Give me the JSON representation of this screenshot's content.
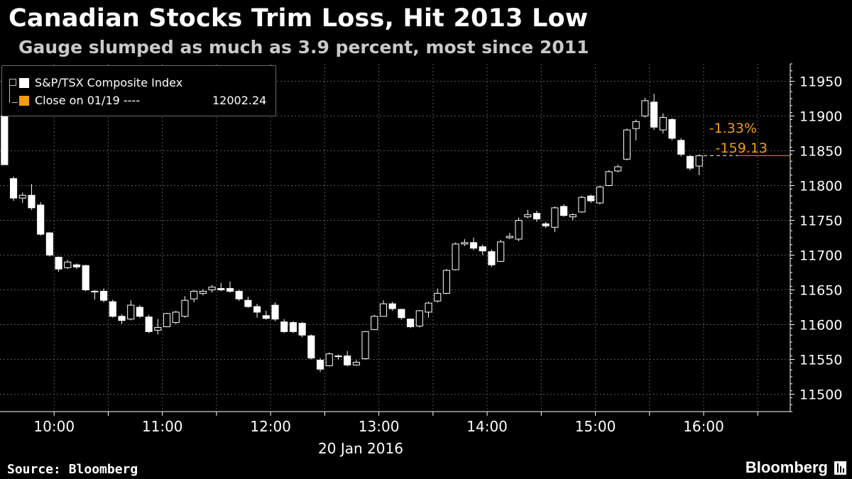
{
  "header": {
    "title": "Canadian Stocks Trim Loss, Hit 2013 Low",
    "subtitle": "Gauge slumped as much as 3.9 percent, most since 2011"
  },
  "footer": {
    "source": "Source: Bloomberg",
    "brand": "Bloomberg"
  },
  "legend": {
    "series_name": "S&P/TSX Composite Index",
    "close_label": "Close on 01/19 ----",
    "close_value": "12002.24"
  },
  "annotation": {
    "pct_change": "-1.33%",
    "abs_change": "-159.13"
  },
  "colors": {
    "background": "#000000",
    "candle_up": "#ffffff",
    "candle_down": "#ffffff",
    "accent": "#f39c12",
    "grid": "#555555"
  },
  "chart_data": {
    "type": "candlestick",
    "title": "Canadian Stocks Trim Loss, Hit 2013 Low",
    "subtitle": "Gauge slumped as much as 3.9 percent, most since 2011",
    "date_label": "20 Jan 2016",
    "xlabel": "",
    "ylabel": "",
    "ylim": [
      11475,
      11975
    ],
    "y_ticks": [
      11500,
      11550,
      11600,
      11650,
      11700,
      11750,
      11800,
      11850,
      11900,
      11950
    ],
    "x_ticks": [
      "10:00",
      "11:00",
      "12:00",
      "13:00",
      "14:00",
      "15:00",
      "16:00"
    ],
    "x_tick_hours": [
      10,
      11,
      12,
      13,
      14,
      15,
      16
    ],
    "x_range_hours": [
      9.5,
      16.8
    ],
    "candle_interval_minutes": 5,
    "last_value": 11843.11,
    "grid": true,
    "legend_position": "top-left",
    "candles": [
      {
        "t": "9:30",
        "o": 11900,
        "h": 11900,
        "l": 11830,
        "c": 11830
      },
      {
        "t": "9:35",
        "o": 11810,
        "h": 11813,
        "l": 11778,
        "c": 11782
      },
      {
        "t": "9:40",
        "o": 11782,
        "h": 11790,
        "l": 11775,
        "c": 11786
      },
      {
        "t": "9:45",
        "o": 11786,
        "h": 11802,
        "l": 11765,
        "c": 11768
      },
      {
        "t": "9:50",
        "o": 11772,
        "h": 11776,
        "l": 11728,
        "c": 11730
      },
      {
        "t": "9:55",
        "o": 11732,
        "h": 11733,
        "l": 11698,
        "c": 11700
      },
      {
        "t": "10:00",
        "o": 11697,
        "h": 11698,
        "l": 11676,
        "c": 11680
      },
      {
        "t": "10:05",
        "o": 11682,
        "h": 11693,
        "l": 11680,
        "c": 11690
      },
      {
        "t": "10:10",
        "o": 11686,
        "h": 11688,
        "l": 11680,
        "c": 11683
      },
      {
        "t": "10:15",
        "o": 11685,
        "h": 11686,
        "l": 11648,
        "c": 11650
      },
      {
        "t": "10:20",
        "o": 11648,
        "h": 11650,
        "l": 11636,
        "c": 11648
      },
      {
        "t": "10:25",
        "o": 11648,
        "h": 11652,
        "l": 11632,
        "c": 11635
      },
      {
        "t": "10:30",
        "o": 11633,
        "h": 11636,
        "l": 11610,
        "c": 11612
      },
      {
        "t": "10:35",
        "o": 11612,
        "h": 11615,
        "l": 11601,
        "c": 11606
      },
      {
        "t": "10:40",
        "o": 11608,
        "h": 11635,
        "l": 11606,
        "c": 11628
      },
      {
        "t": "10:45",
        "o": 11625,
        "h": 11628,
        "l": 11610,
        "c": 11612
      },
      {
        "t": "10:50",
        "o": 11611,
        "h": 11614,
        "l": 11588,
        "c": 11590
      },
      {
        "t": "10:55",
        "o": 11592,
        "h": 11608,
        "l": 11586,
        "c": 11596
      },
      {
        "t": "11:00",
        "o": 11597,
        "h": 11617,
        "l": 11597,
        "c": 11616
      },
      {
        "t": "11:05",
        "o": 11603,
        "h": 11620,
        "l": 11601,
        "c": 11618
      },
      {
        "t": "11:10",
        "o": 11612,
        "h": 11641,
        "l": 11610,
        "c": 11635
      },
      {
        "t": "11:15",
        "o": 11637,
        "h": 11650,
        "l": 11632,
        "c": 11648
      },
      {
        "t": "11:20",
        "o": 11645,
        "h": 11651,
        "l": 11642,
        "c": 11648
      },
      {
        "t": "11:25",
        "o": 11650,
        "h": 11657,
        "l": 11646,
        "c": 11654
      },
      {
        "t": "11:30",
        "o": 11652,
        "h": 11660,
        "l": 11648,
        "c": 11650
      },
      {
        "t": "11:35",
        "o": 11652,
        "h": 11662,
        "l": 11646,
        "c": 11648
      },
      {
        "t": "11:40",
        "o": 11648,
        "h": 11650,
        "l": 11634,
        "c": 11637
      },
      {
        "t": "11:45",
        "o": 11635,
        "h": 11640,
        "l": 11624,
        "c": 11626
      },
      {
        "t": "11:50",
        "o": 11626,
        "h": 11630,
        "l": 11610,
        "c": 11618
      },
      {
        "t": "11:55",
        "o": 11613,
        "h": 11620,
        "l": 11607,
        "c": 11609
      },
      {
        "t": "12:00",
        "o": 11628,
        "h": 11632,
        "l": 11605,
        "c": 11608
      },
      {
        "t": "12:05",
        "o": 11604,
        "h": 11608,
        "l": 11588,
        "c": 11590
      },
      {
        "t": "12:10",
        "o": 11603,
        "h": 11605,
        "l": 11588,
        "c": 11590
      },
      {
        "t": "12:15",
        "o": 11602,
        "h": 11604,
        "l": 11582,
        "c": 11585
      },
      {
        "t": "12:20",
        "o": 11584,
        "h": 11586,
        "l": 11550,
        "c": 11552
      },
      {
        "t": "12:25",
        "o": 11549,
        "h": 11552,
        "l": 11532,
        "c": 11536
      },
      {
        "t": "12:30",
        "o": 11541,
        "h": 11560,
        "l": 11540,
        "c": 11558
      },
      {
        "t": "12:35",
        "o": 11555,
        "h": 11557,
        "l": 11550,
        "c": 11555
      },
      {
        "t": "12:40",
        "o": 11555,
        "h": 11562,
        "l": 11540,
        "c": 11542
      },
      {
        "t": "12:45",
        "o": 11542,
        "h": 11549,
        "l": 11541,
        "c": 11546
      },
      {
        "t": "12:50",
        "o": 11551,
        "h": 11591,
        "l": 11550,
        "c": 11590
      },
      {
        "t": "12:55",
        "o": 11593,
        "h": 11614,
        "l": 11592,
        "c": 11612
      },
      {
        "t": "13:00",
        "o": 11612,
        "h": 11635,
        "l": 11612,
        "c": 11630
      },
      {
        "t": "13:05",
        "o": 11630,
        "h": 11633,
        "l": 11620,
        "c": 11623
      },
      {
        "t": "13:10",
        "o": 11622,
        "h": 11623,
        "l": 11607,
        "c": 11610
      },
      {
        "t": "13:15",
        "o": 11608,
        "h": 11609,
        "l": 11595,
        "c": 11597
      },
      {
        "t": "13:20",
        "o": 11598,
        "h": 11621,
        "l": 11596,
        "c": 11620
      },
      {
        "t": "13:25",
        "o": 11618,
        "h": 11633,
        "l": 11610,
        "c": 11631
      },
      {
        "t": "13:30",
        "o": 11634,
        "h": 11652,
        "l": 11632,
        "c": 11645
      },
      {
        "t": "13:35",
        "o": 11645,
        "h": 11680,
        "l": 11644,
        "c": 11678
      },
      {
        "t": "13:40",
        "o": 11679,
        "h": 11718,
        "l": 11678,
        "c": 11716
      },
      {
        "t": "13:45",
        "o": 11716,
        "h": 11723,
        "l": 11713,
        "c": 11718
      },
      {
        "t": "13:50",
        "o": 11718,
        "h": 11725,
        "l": 11707,
        "c": 11710
      },
      {
        "t": "13:55",
        "o": 11712,
        "h": 11715,
        "l": 11700,
        "c": 11706
      },
      {
        "t": "14:00",
        "o": 11705,
        "h": 11708,
        "l": 11683,
        "c": 11686
      },
      {
        "t": "14:05",
        "o": 11691,
        "h": 11722,
        "l": 11690,
        "c": 11719
      },
      {
        "t": "14:10",
        "o": 11725,
        "h": 11732,
        "l": 11723,
        "c": 11727
      },
      {
        "t": "14:15",
        "o": 11723,
        "h": 11754,
        "l": 11720,
        "c": 11750
      },
      {
        "t": "14:20",
        "o": 11755,
        "h": 11765,
        "l": 11753,
        "c": 11758
      },
      {
        "t": "14:25",
        "o": 11760,
        "h": 11764,
        "l": 11748,
        "c": 11752
      },
      {
        "t": "14:30",
        "o": 11745,
        "h": 11748,
        "l": 11739,
        "c": 11742
      },
      {
        "t": "14:35",
        "o": 11740,
        "h": 11770,
        "l": 11733,
        "c": 11768
      },
      {
        "t": "14:40",
        "o": 11770,
        "h": 11773,
        "l": 11755,
        "c": 11757
      },
      {
        "t": "14:45",
        "o": 11755,
        "h": 11760,
        "l": 11750,
        "c": 11758
      },
      {
        "t": "14:50",
        "o": 11762,
        "h": 11785,
        "l": 11761,
        "c": 11783
      },
      {
        "t": "14:55",
        "o": 11785,
        "h": 11787,
        "l": 11775,
        "c": 11778
      },
      {
        "t": "15:00",
        "o": 11775,
        "h": 11800,
        "l": 11773,
        "c": 11798
      },
      {
        "t": "15:05",
        "o": 11800,
        "h": 11822,
        "l": 11799,
        "c": 11820
      },
      {
        "t": "15:10",
        "o": 11821,
        "h": 11830,
        "l": 11819,
        "c": 11827
      },
      {
        "t": "15:15",
        "o": 11838,
        "h": 11882,
        "l": 11836,
        "c": 11880
      },
      {
        "t": "15:20",
        "o": 11882,
        "h": 11895,
        "l": 11865,
        "c": 11892
      },
      {
        "t": "15:25",
        "o": 11900,
        "h": 11926,
        "l": 11898,
        "c": 11922
      },
      {
        "t": "15:30",
        "o": 11920,
        "h": 11932,
        "l": 11880,
        "c": 11884
      },
      {
        "t": "15:35",
        "o": 11880,
        "h": 11904,
        "l": 11875,
        "c": 11898
      },
      {
        "t": "15:40",
        "o": 11895,
        "h": 11897,
        "l": 11865,
        "c": 11868
      },
      {
        "t": "15:45",
        "o": 11865,
        "h": 11868,
        "l": 11842,
        "c": 11845
      },
      {
        "t": "15:50",
        "o": 11842,
        "h": 11844,
        "l": 11822,
        "c": 11825
      },
      {
        "t": "15:55",
        "o": 11828,
        "h": 11845,
        "l": 11815,
        "c": 11843
      }
    ]
  }
}
